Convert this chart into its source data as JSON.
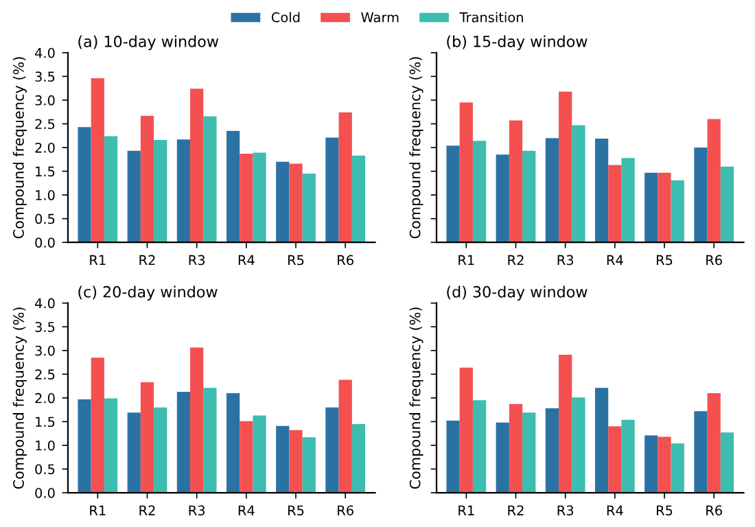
{
  "chart_data": [
    {
      "type": "bar",
      "title": "(a) 10-day window",
      "ylabel": "Compound frequency (%)",
      "categories": [
        "R1",
        "R2",
        "R3",
        "R4",
        "R5",
        "R6"
      ],
      "legend": "top",
      "ylim": [
        0,
        4
      ],
      "yticks": [
        {
          "value": 0,
          "label": "0.0"
        },
        {
          "value": 0.5,
          "label": "0.5"
        },
        {
          "value": 1,
          "label": "1.0"
        },
        {
          "value": 1.5,
          "label": "1.5"
        },
        {
          "value": 2,
          "label": "2.0"
        },
        {
          "value": 2.5,
          "label": "2.5"
        },
        {
          "value": 3,
          "label": "3.0"
        },
        {
          "value": 3.5,
          "label": "3.5"
        },
        {
          "value": 4,
          "label": "4.0"
        }
      ],
      "grid": false,
      "series": [
        {
          "name": "Cold",
          "color": "#2a72a4",
          "values": [
            2.43,
            1.93,
            2.17,
            2.35,
            1.7,
            2.21
          ]
        },
        {
          "name": "Warm",
          "color": "#f45050",
          "values": [
            3.46,
            2.67,
            3.24,
            1.87,
            1.66,
            2.74
          ]
        },
        {
          "name": "Transition",
          "color": "#3dbcb0",
          "values": [
            2.24,
            2.16,
            2.66,
            1.89,
            1.45,
            1.83
          ]
        }
      ]
    },
    {
      "type": "bar",
      "title": "(b) 15-day window",
      "ylabel": "Compound frequency (%)",
      "categories": [
        "R1",
        "R2",
        "R3",
        "R4",
        "R5",
        "R6"
      ],
      "ylim": [
        0,
        4
      ],
      "yticks": [
        {
          "value": 0,
          "label": null
        },
        {
          "value": 0.5,
          "label": null
        },
        {
          "value": 1,
          "label": null
        },
        {
          "value": 1.5,
          "label": null
        },
        {
          "value": 2,
          "label": null
        },
        {
          "value": 2.5,
          "label": null
        },
        {
          "value": 3,
          "label": null
        },
        {
          "value": 3.5,
          "label": null
        },
        {
          "value": 4,
          "label": null
        }
      ],
      "tick_labels": "x",
      "grid": false,
      "series": [
        {
          "color": "#2a72a4",
          "values": [
            2.04,
            1.85,
            2.2,
            2.19,
            1.47,
            2.0
          ]
        },
        {
          "color": "#f45050",
          "values": [
            2.95,
            2.57,
            3.18,
            1.63,
            1.47,
            2.6
          ]
        },
        {
          "color": "#3dbcb0",
          "values": [
            2.14,
            1.93,
            2.47,
            1.78,
            1.31,
            1.6
          ]
        }
      ]
    },
    {
      "type": "bar",
      "title": "(c) 20-day window",
      "ylabel": "Compound frequency (%)",
      "categories": [
        "R1",
        "R2",
        "R3",
        "R4",
        "R5",
        "R6"
      ],
      "ylim": [
        0,
        4
      ],
      "yticks": [
        {
          "value": 0,
          "label": "0.0"
        },
        {
          "value": 0.5,
          "label": "0.5"
        },
        {
          "value": 1,
          "label": "1.0"
        },
        {
          "value": 1.5,
          "label": "1.5"
        },
        {
          "value": 2,
          "label": "2.0"
        },
        {
          "value": 2.5,
          "label": "2.5"
        },
        {
          "value": 3,
          "label": "3.0"
        },
        {
          "value": 3.5,
          "label": "3.5"
        },
        {
          "value": 4,
          "label": "4.0"
        }
      ],
      "grid": false,
      "series": [
        {
          "color": "#2a72a4",
          "values": [
            1.97,
            1.69,
            2.13,
            2.1,
            1.41,
            1.8
          ]
        },
        {
          "color": "#f45050",
          "values": [
            2.85,
            2.33,
            3.06,
            1.51,
            1.32,
            2.38
          ]
        },
        {
          "color": "#3dbcb0",
          "values": [
            1.99,
            1.8,
            2.21,
            1.63,
            1.17,
            1.45
          ]
        }
      ]
    },
    {
      "type": "bar",
      "title": "(d) 30-day window",
      "ylabel": "Compound frequency (%)",
      "categories": [
        "R1",
        "R2",
        "R3",
        "R4",
        "R5",
        "R6"
      ],
      "ylim": [
        0,
        4
      ],
      "yticks": [
        {
          "value": 0,
          "label": null
        },
        {
          "value": 0.5,
          "label": null
        },
        {
          "value": 1,
          "label": null
        },
        {
          "value": 1.5,
          "label": null
        },
        {
          "value": 2,
          "label": null
        },
        {
          "value": 2.5,
          "label": null
        },
        {
          "value": 3,
          "label": null
        },
        {
          "value": 3.5,
          "label": null
        },
        {
          "value": 4,
          "label": null
        }
      ],
      "tick_labels": "x",
      "grid": false,
      "series": [
        {
          "color": "#2a72a4",
          "values": [
            1.52,
            1.48,
            1.78,
            2.21,
            1.21,
            1.72
          ]
        },
        {
          "color": "#f45050",
          "values": [
            2.64,
            1.87,
            2.91,
            1.4,
            1.18,
            2.1
          ]
        },
        {
          "color": "#3dbcb0",
          "values": [
            1.95,
            1.69,
            2.01,
            1.54,
            1.04,
            1.27
          ]
        }
      ]
    }
  ]
}
